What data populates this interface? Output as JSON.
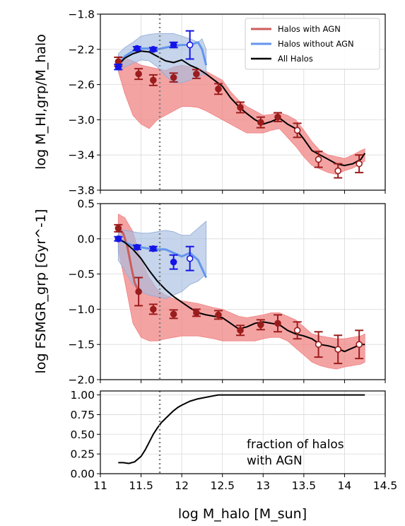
{
  "colors": {
    "agn": "#b22222",
    "agn_band": "#f08080",
    "agn_line": "#cd5c5c",
    "noagn": "#1414e6",
    "noagn_band": "#a8bfe0",
    "noagn_line": "#6495ed",
    "all": "#000000",
    "vline": "#808080"
  },
  "chart_data": [
    {
      "type": "line",
      "ylabel": "log M_HI,grp/M_halo",
      "ylim": [
        -3.8,
        -1.8
      ],
      "yticks": [
        "-1.8",
        "-2.2",
        "-2.6",
        "-3.0",
        "-3.4",
        "-3.8"
      ],
      "xlim": [
        11,
        14.5
      ],
      "vline_x": 11.73,
      "legend": {
        "position": "top-right",
        "entries": [
          "Halos with AGN",
          "Halos without AGN",
          "All Halos"
        ]
      },
      "series": [
        {
          "name": "Halos with AGN",
          "band_x": [
            11.22,
            11.3,
            11.4,
            11.5,
            11.6,
            11.7,
            11.8,
            11.9,
            12.0,
            12.1,
            12.2,
            12.3,
            12.4,
            12.5,
            12.6,
            12.7,
            12.8,
            12.9,
            13.0,
            13.1,
            13.2,
            13.3,
            13.4,
            13.5,
            13.6,
            13.7,
            13.8,
            13.9,
            14.0,
            14.1,
            14.2,
            14.25
          ],
          "band_upper": [
            -2.27,
            -2.3,
            -2.33,
            -2.38,
            -2.4,
            -2.42,
            -2.44,
            -2.4,
            -2.38,
            -2.4,
            -2.42,
            -2.45,
            -2.5,
            -2.55,
            -2.68,
            -2.78,
            -2.85,
            -2.9,
            -2.95,
            -2.94,
            -2.92,
            -2.95,
            -3.0,
            -3.12,
            -3.25,
            -3.35,
            -3.4,
            -3.42,
            -3.44,
            -3.4,
            -3.35,
            -3.33
          ],
          "band_lower": [
            -2.45,
            -2.7,
            -2.95,
            -3.05,
            -3.1,
            -3.0,
            -2.95,
            -2.9,
            -2.85,
            -2.85,
            -2.86,
            -2.9,
            -2.95,
            -3.0,
            -3.05,
            -3.1,
            -3.15,
            -3.15,
            -3.15,
            -3.12,
            -3.1,
            -3.2,
            -3.3,
            -3.42,
            -3.52,
            -3.56,
            -3.6,
            -3.62,
            -3.58,
            -3.55,
            -3.5,
            -3.47
          ],
          "points_x": [
            11.22,
            11.47,
            11.65,
            11.9,
            12.18,
            12.45,
            12.72,
            12.97,
            13.18,
            13.42,
            13.68,
            13.92,
            14.18
          ],
          "points_y": [
            -2.34,
            -2.48,
            -2.55,
            -2.52,
            -2.48,
            -2.65,
            -2.86,
            -3.03,
            -2.97,
            -3.12,
            -3.45,
            -3.58,
            -3.5
          ],
          "points_err": [
            0.05,
            0.06,
            0.06,
            0.05,
            0.05,
            0.06,
            0.06,
            0.06,
            0.05,
            0.08,
            0.09,
            0.08,
            0.1
          ],
          "points_open": [
            false,
            false,
            false,
            false,
            false,
            false,
            false,
            false,
            false,
            true,
            true,
            true,
            true
          ]
        },
        {
          "name": "Halos without AGN",
          "band_x": [
            11.22,
            11.3,
            11.4,
            11.5,
            11.6,
            11.7,
            11.8,
            11.9,
            12.0,
            12.1,
            12.2,
            12.25,
            12.3
          ],
          "band_upper": [
            -2.25,
            -2.18,
            -2.12,
            -2.05,
            -2.03,
            -2.02,
            -2.02,
            -2.02,
            -2.05,
            -2.08,
            -2.12,
            -2.08,
            -2.2
          ],
          "band_lower": [
            -2.45,
            -2.4,
            -2.36,
            -2.32,
            -2.33,
            -2.4,
            -2.5,
            -2.58,
            -2.58,
            -2.55,
            -2.52,
            -2.48,
            -2.5
          ],
          "line_x": [
            11.22,
            11.3,
            11.4,
            11.5,
            11.6,
            11.7,
            11.8,
            11.9,
            12.0,
            12.1,
            12.2,
            12.25,
            12.3
          ],
          "line_y": [
            -2.38,
            -2.28,
            -2.22,
            -2.19,
            -2.19,
            -2.2,
            -2.18,
            -2.16,
            -2.15,
            -2.15,
            -2.12,
            -2.2,
            -2.38
          ],
          "points_x": [
            11.22,
            11.45,
            11.65,
            11.9,
            12.1
          ],
          "points_y": [
            -2.4,
            -2.19,
            -2.2,
            -2.15,
            -2.15
          ],
          "points_err": [
            0.03,
            0.02,
            0.02,
            0.03,
            0.16
          ],
          "points_open": [
            false,
            false,
            false,
            false,
            true
          ]
        },
        {
          "name": "All Halos",
          "line_x": [
            11.22,
            11.3,
            11.4,
            11.5,
            11.6,
            11.7,
            11.8,
            11.9,
            12.0,
            12.1,
            12.2,
            12.3,
            12.4,
            12.5,
            12.6,
            12.7,
            12.8,
            12.9,
            13.0,
            13.1,
            13.2,
            13.3,
            13.4,
            13.5,
            13.6,
            13.7,
            13.8,
            13.9,
            14.0,
            14.1,
            14.2,
            14.25
          ],
          "line_y": [
            -2.38,
            -2.3,
            -2.25,
            -2.22,
            -2.23,
            -2.28,
            -2.33,
            -2.35,
            -2.32,
            -2.38,
            -2.42,
            -2.48,
            -2.55,
            -2.62,
            -2.75,
            -2.85,
            -2.93,
            -3.0,
            -3.05,
            -3.02,
            -2.98,
            -3.05,
            -3.1,
            -3.22,
            -3.35,
            -3.4,
            -3.45,
            -3.5,
            -3.52,
            -3.5,
            -3.45,
            -3.38
          ]
        }
      ]
    },
    {
      "type": "line",
      "ylabel": "log FSMGR_grp [Gyr^-1]",
      "ylim": [
        -2.0,
        0.5
      ],
      "yticks": [
        "0.5",
        "0.0",
        "-0.5",
        "-1.0",
        "-1.5",
        "-2.0"
      ],
      "xlim": [
        11,
        14.5
      ],
      "vline_x": 11.73,
      "series": [
        {
          "name": "Halos with AGN",
          "band_x": [
            11.22,
            11.3,
            11.4,
            11.5,
            11.6,
            11.7,
            11.8,
            11.9,
            12.0,
            12.1,
            12.2,
            12.3,
            12.4,
            12.5,
            12.6,
            12.7,
            12.8,
            12.9,
            13.0,
            13.1,
            13.2,
            13.3,
            13.4,
            13.5,
            13.6,
            13.7,
            13.8,
            13.9,
            14.0,
            14.1,
            14.2,
            14.25
          ],
          "band_upper": [
            0.35,
            0.3,
            0.1,
            -0.3,
            -0.55,
            -0.72,
            -0.8,
            -0.85,
            -0.88,
            -0.9,
            -0.92,
            -0.95,
            -0.98,
            -1.0,
            -1.05,
            -1.1,
            -1.12,
            -1.1,
            -1.08,
            -1.05,
            -1.05,
            -1.1,
            -1.15,
            -1.25,
            -1.35,
            -1.38,
            -1.4,
            -1.42,
            -1.42,
            -1.4,
            -1.38,
            -1.35
          ],
          "band_lower": [
            -0.15,
            -0.6,
            -1.2,
            -1.4,
            -1.45,
            -1.45,
            -1.42,
            -1.4,
            -1.38,
            -1.38,
            -1.38,
            -1.4,
            -1.42,
            -1.45,
            -1.45,
            -1.45,
            -1.45,
            -1.45,
            -1.42,
            -1.4,
            -1.4,
            -1.45,
            -1.55,
            -1.65,
            -1.75,
            -1.8,
            -1.83,
            -1.85,
            -1.82,
            -1.8,
            -1.78,
            -1.75
          ],
          "line_x": [
            11.22,
            11.28,
            11.33,
            11.38,
            11.42,
            11.46,
            11.5
          ],
          "line_y": [
            0.15,
            0.08,
            -0.1,
            -0.4,
            -0.62,
            -0.72,
            -0.78
          ],
          "points_x": [
            11.22,
            11.47,
            11.65,
            11.9,
            12.18,
            12.45,
            12.72,
            12.97,
            13.18,
            13.42,
            13.68,
            13.92,
            14.18
          ],
          "points_y": [
            0.15,
            -0.75,
            -1.0,
            -1.07,
            -1.05,
            -1.08,
            -1.3,
            -1.22,
            -1.2,
            -1.3,
            -1.5,
            -1.57,
            -1.5
          ],
          "points_err": [
            0.05,
            0.2,
            0.07,
            0.06,
            0.05,
            0.06,
            0.07,
            0.07,
            0.12,
            0.12,
            0.18,
            0.2,
            0.2
          ],
          "points_open": [
            false,
            false,
            false,
            false,
            false,
            false,
            false,
            false,
            false,
            true,
            true,
            true,
            true
          ]
        },
        {
          "name": "Halos without AGN",
          "band_x": [
            11.22,
            11.3,
            11.4,
            11.5,
            11.6,
            11.7,
            11.8,
            11.9,
            12.0,
            12.1,
            12.2,
            12.3
          ],
          "band_upper": [
            0.15,
            0.12,
            0.1,
            0.08,
            0.08,
            0.1,
            0.12,
            0.1,
            0.05,
            0.05,
            0.15,
            0.25
          ],
          "band_lower": [
            -0.3,
            -0.45,
            -0.65,
            -0.75,
            -0.8,
            -0.82,
            -0.85,
            -0.8,
            -0.75,
            -0.65,
            -0.6,
            -0.5
          ],
          "line_x": [
            11.22,
            11.3,
            11.4,
            11.5,
            11.6,
            11.7,
            11.8,
            11.9,
            12.0,
            12.1,
            12.2,
            12.3
          ],
          "line_y": [
            0.0,
            -0.05,
            -0.1,
            -0.12,
            -0.14,
            -0.15,
            -0.15,
            -0.2,
            -0.25,
            -0.2,
            -0.3,
            -0.55
          ],
          "points_x": [
            11.22,
            11.45,
            11.65,
            11.9,
            12.1
          ],
          "points_y": [
            0.0,
            -0.12,
            -0.14,
            -0.33,
            -0.28
          ],
          "points_err": [
            0.03,
            0.03,
            0.03,
            0.1,
            0.17
          ],
          "points_open": [
            false,
            false,
            false,
            false,
            true
          ]
        },
        {
          "name": "All Halos",
          "line_x": [
            11.22,
            11.3,
            11.4,
            11.5,
            11.6,
            11.7,
            11.8,
            11.9,
            12.0,
            12.1,
            12.2,
            12.3,
            12.4,
            12.5,
            12.6,
            12.7,
            12.8,
            12.9,
            13.0,
            13.1,
            13.2,
            13.3,
            13.4,
            13.5,
            13.6,
            13.7,
            13.8,
            13.9,
            14.0,
            14.1,
            14.2,
            14.25
          ],
          "line_y": [
            0.0,
            -0.05,
            -0.15,
            -0.28,
            -0.45,
            -0.6,
            -0.72,
            -0.82,
            -0.9,
            -0.98,
            -1.05,
            -1.08,
            -1.1,
            -1.12,
            -1.2,
            -1.28,
            -1.25,
            -1.2,
            -1.18,
            -1.2,
            -1.22,
            -1.3,
            -1.35,
            -1.38,
            -1.42,
            -1.5,
            -1.52,
            -1.55,
            -1.6,
            -1.55,
            -1.5,
            -1.5
          ]
        }
      ]
    },
    {
      "type": "line",
      "xlabel": "log M_halo [M_sun]",
      "ylim": [
        0.0,
        1.05
      ],
      "yticks": [
        "1.00",
        "0.75",
        "0.50",
        "0.25",
        "0.00"
      ],
      "xlim": [
        11,
        14.5
      ],
      "xticks": [
        "11",
        "11.5",
        "12",
        "12.5",
        "13",
        "13.5",
        "14",
        "14.5"
      ],
      "vline_x": 11.73,
      "annotation": [
        "fraction of halos",
        "with AGN"
      ],
      "series": [
        {
          "name": "fraction of halos with AGN",
          "line_x": [
            11.22,
            11.28,
            11.35,
            11.42,
            11.5,
            11.55,
            11.6,
            11.65,
            11.7,
            11.75,
            11.8,
            11.85,
            11.9,
            11.95,
            12.0,
            12.1,
            12.2,
            12.3,
            12.4,
            12.45,
            12.5,
            13.0,
            13.5,
            14.0,
            14.25
          ],
          "line_y": [
            0.14,
            0.14,
            0.13,
            0.15,
            0.22,
            0.3,
            0.4,
            0.5,
            0.58,
            0.65,
            0.7,
            0.75,
            0.8,
            0.84,
            0.87,
            0.92,
            0.95,
            0.97,
            0.99,
            1.0,
            1.0,
            1.0,
            1.0,
            1.0,
            1.0
          ]
        }
      ]
    }
  ]
}
